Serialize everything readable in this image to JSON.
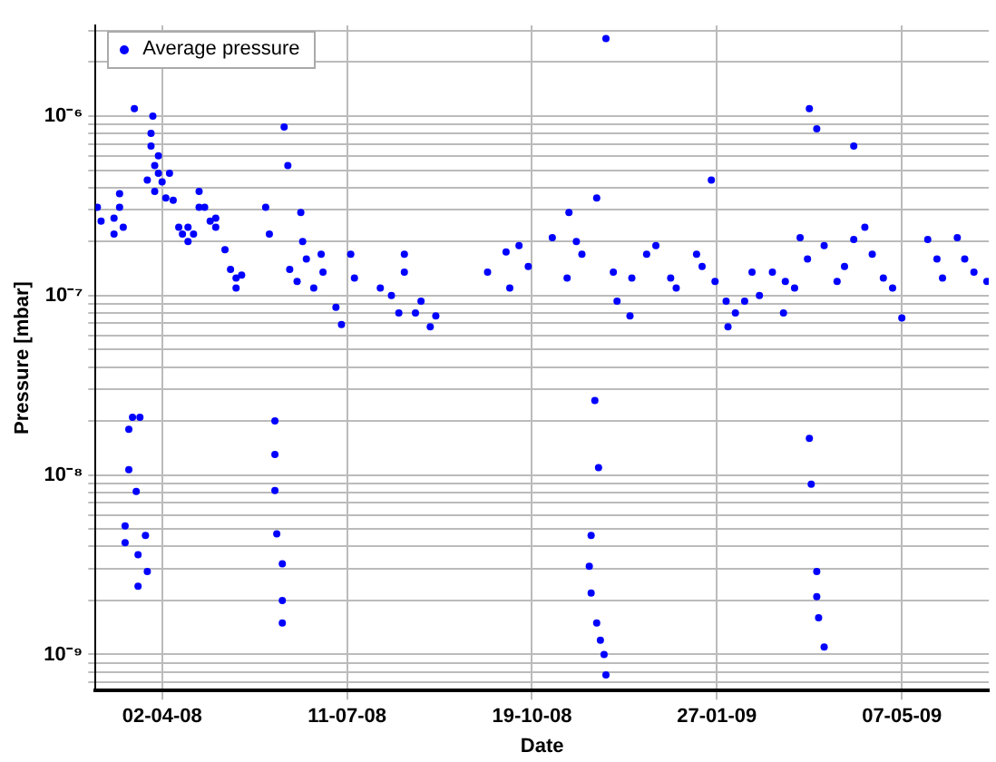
{
  "chart_data": {
    "type": "scatter",
    "xlabel": "Date",
    "ylabel": "Pressure [mbar]",
    "log": "y",
    "grid": true,
    "legend": "top left",
    "marker": "circle",
    "xlim": [
      "2008-02-26",
      "2009-06-23"
    ],
    "xticks": [
      {
        "value": "2008-04-02",
        "label": "02-04-08"
      },
      {
        "value": "2008-07-11",
        "label": "11-07-08"
      },
      {
        "value": "2008-10-19",
        "label": "19-10-08"
      },
      {
        "value": "2009-01-27",
        "label": "27-01-09"
      },
      {
        "value": "2009-05-07",
        "label": "07-05-09"
      }
    ],
    "ylim": [
      6.3e-10,
      3.2e-06
    ],
    "yticks": [
      {
        "value": 7e-10,
        "label": null
      },
      {
        "value": 8e-10,
        "label": null
      },
      {
        "value": 9e-10,
        "label": null
      },
      {
        "value": 1e-09,
        "label": "10⁻⁹"
      },
      {
        "value": 2e-09,
        "label": null
      },
      {
        "value": 3e-09,
        "label": null
      },
      {
        "value": 4e-09,
        "label": null
      },
      {
        "value": 5e-09,
        "label": null
      },
      {
        "value": 6e-09,
        "label": null
      },
      {
        "value": 7e-09,
        "label": null
      },
      {
        "value": 8e-09,
        "label": null
      },
      {
        "value": 9e-09,
        "label": null
      },
      {
        "value": 1e-08,
        "label": "10⁻⁸"
      },
      {
        "value": 2e-08,
        "label": null
      },
      {
        "value": 3e-08,
        "label": null
      },
      {
        "value": 4e-08,
        "label": null
      },
      {
        "value": 5e-08,
        "label": null
      },
      {
        "value": 6e-08,
        "label": null
      },
      {
        "value": 7e-08,
        "label": null
      },
      {
        "value": 8e-08,
        "label": null
      },
      {
        "value": 9e-08,
        "label": null
      },
      {
        "value": 1e-07,
        "label": "10⁻⁷"
      },
      {
        "value": 2e-07,
        "label": null
      },
      {
        "value": 3e-07,
        "label": null
      },
      {
        "value": 4e-07,
        "label": null
      },
      {
        "value": 5e-07,
        "label": null
      },
      {
        "value": 6e-07,
        "label": null
      },
      {
        "value": 7e-07,
        "label": null
      },
      {
        "value": 8e-07,
        "label": null
      },
      {
        "value": 9e-07,
        "label": null
      },
      {
        "value": 1e-06,
        "label": "10⁻⁶"
      },
      {
        "value": 2e-06,
        "label": null
      },
      {
        "value": 3e-06,
        "label": null
      }
    ],
    "series": [
      {
        "name": "Average pressure",
        "color": "#0000ff",
        "x": [
          "2008-02-27",
          "2008-02-29",
          "2008-03-07",
          "2008-03-07",
          "2008-03-10",
          "2008-03-10",
          "2008-03-12",
          "2008-03-18",
          "2008-03-25",
          "2008-03-27",
          "2008-03-27",
          "2008-03-29",
          "2008-03-29",
          "2008-03-31",
          "2008-03-31",
          "2008-03-28",
          "2008-04-02",
          "2008-04-04",
          "2008-04-06",
          "2008-04-08",
          "2008-04-11",
          "2008-04-13",
          "2008-04-16",
          "2008-04-16",
          "2008-04-19",
          "2008-04-22",
          "2008-04-22",
          "2008-04-25",
          "2008-04-28",
          "2008-05-01",
          "2008-05-01",
          "2008-05-06",
          "2008-05-09",
          "2008-05-12",
          "2008-05-15",
          "2008-05-12",
          "2008-05-28",
          "2008-05-30",
          "2008-06-07",
          "2008-06-09",
          "2008-06-10",
          "2008-06-14",
          "2008-06-16",
          "2008-06-17",
          "2008-06-19",
          "2008-06-23",
          "2008-06-27",
          "2008-06-28",
          "2008-07-05",
          "2008-07-08",
          "2008-07-13",
          "2008-07-15",
          "2008-07-29",
          "2008-08-04",
          "2008-08-08",
          "2008-08-11",
          "2008-08-11",
          "2008-08-17",
          "2008-08-20",
          "2008-08-25",
          "2008-08-28",
          "2008-09-25",
          "2008-10-05",
          "2008-10-07",
          "2008-10-12",
          "2008-10-17",
          "2008-10-30",
          "2008-11-08",
          "2008-11-12",
          "2008-11-07",
          "2008-11-15",
          "2008-11-23",
          "2008-11-28",
          "2008-12-02",
          "2008-12-04",
          "2008-12-12",
          "2008-12-11",
          "2008-12-20",
          "2008-12-25",
          "2009-01-02",
          "2009-01-05",
          "2009-01-16",
          "2009-01-19",
          "2009-01-24",
          "2009-01-26",
          "2009-02-01",
          "2009-02-02",
          "2009-02-06",
          "2009-02-11",
          "2009-02-15",
          "2009-02-19",
          "2009-02-26",
          "2009-03-04",
          "2009-03-05",
          "2009-03-10",
          "2009-03-13",
          "2009-03-17",
          "2009-03-18",
          "2009-03-22",
          "2009-03-26",
          "2009-04-02",
          "2009-04-06",
          "2009-04-11",
          "2009-04-11",
          "2009-04-17",
          "2009-04-21",
          "2009-04-27",
          "2009-05-02",
          "2009-05-07",
          "2009-05-21",
          "2009-05-26",
          "2009-05-29",
          "2009-06-06",
          "2009-06-10",
          "2009-06-15",
          "2009-06-22",
          "2008-03-15",
          "2008-03-17",
          "2008-03-15",
          "2008-03-19",
          "2008-03-21",
          "2008-03-13",
          "2008-03-13",
          "2008-03-24",
          "2008-03-20",
          "2008-03-25",
          "2008-03-20",
          "2008-06-02",
          "2008-06-02",
          "2008-06-02",
          "2008-06-03",
          "2008-06-06",
          "2008-06-06",
          "2008-06-06",
          "2008-11-22",
          "2008-11-24",
          "2008-11-20",
          "2008-11-19",
          "2008-11-20",
          "2008-11-23",
          "2008-11-25",
          "2008-11-27",
          "2008-11-28",
          "2009-03-18",
          "2009-03-19",
          "2009-03-22",
          "2009-03-22",
          "2009-03-23",
          "2009-03-26"
        ],
        "values": [
          3.1e-07,
          2.6e-07,
          2.7e-07,
          2.2e-07,
          3.1e-07,
          3.7e-07,
          2.4e-07,
          1.1e-06,
          4.4e-07,
          6.8e-07,
          8e-07,
          5.3e-07,
          3.8e-07,
          4.8e-07,
          6e-07,
          1e-06,
          4.3e-07,
          3.5e-07,
          4.8e-07,
          3.4e-07,
          2.4e-07,
          2.2e-07,
          2e-07,
          2.4e-07,
          2.2e-07,
          3.8e-07,
          3.1e-07,
          3.1e-07,
          2.6e-07,
          2.4e-07,
          2.7e-07,
          1.8e-07,
          1.4e-07,
          1.25e-07,
          1.3e-07,
          1.1e-07,
          3.1e-07,
          2.2e-07,
          8.7e-07,
          5.3e-07,
          1.4e-07,
          1.2e-07,
          2.9e-07,
          2e-07,
          1.6e-07,
          1.1e-07,
          1.7e-07,
          1.35e-07,
          8.6e-08,
          6.9e-08,
          1.7e-07,
          1.25e-07,
          1.1e-07,
          1e-07,
          8e-08,
          1.7e-07,
          1.35e-07,
          8e-08,
          9.3e-08,
          6.7e-08,
          7.7e-08,
          1.35e-07,
          1.75e-07,
          1.1e-07,
          1.9e-07,
          1.45e-07,
          2.1e-07,
          2.9e-07,
          2e-07,
          1.25e-07,
          1.7e-07,
          3.5e-07,
          2.7e-06,
          1.35e-07,
          9.3e-08,
          1.25e-07,
          7.7e-08,
          1.7e-07,
          1.9e-07,
          1.25e-07,
          1.1e-07,
          1.7e-07,
          1.45e-07,
          4.4e-07,
          1.2e-07,
          9.3e-08,
          6.7e-08,
          8e-08,
          9.3e-08,
          1.35e-07,
          1e-07,
          1.35e-07,
          8e-08,
          1.2e-07,
          1.1e-07,
          2.1e-07,
          1.6e-07,
          1.1e-06,
          8.5e-07,
          1.9e-07,
          1.2e-07,
          1.45e-07,
          6.8e-07,
          2.05e-07,
          2.4e-07,
          1.7e-07,
          1.25e-07,
          1.1e-07,
          7.5e-08,
          2.05e-07,
          1.6e-07,
          1.25e-07,
          2.1e-07,
          1.6e-07,
          1.35e-07,
          1.2e-07,
          1.8e-08,
          2.1e-08,
          1.07e-08,
          8.1e-09,
          2.1e-08,
          5.2e-09,
          4.2e-09,
          4.6e-09,
          3.6e-09,
          2.9e-09,
          2.4e-09,
          2e-08,
          1.3e-08,
          8.2e-09,
          4.7e-09,
          3.2e-09,
          2e-09,
          1.5e-09,
          2.6e-08,
          1.1e-08,
          4.6e-09,
          3.1e-09,
          2.2e-09,
          1.5e-09,
          1.2e-09,
          1e-09,
          7.7e-10,
          1.6e-08,
          8.9e-09,
          2.9e-09,
          2.1e-09,
          1.6e-09,
          1.1e-09
        ]
      }
    ]
  }
}
